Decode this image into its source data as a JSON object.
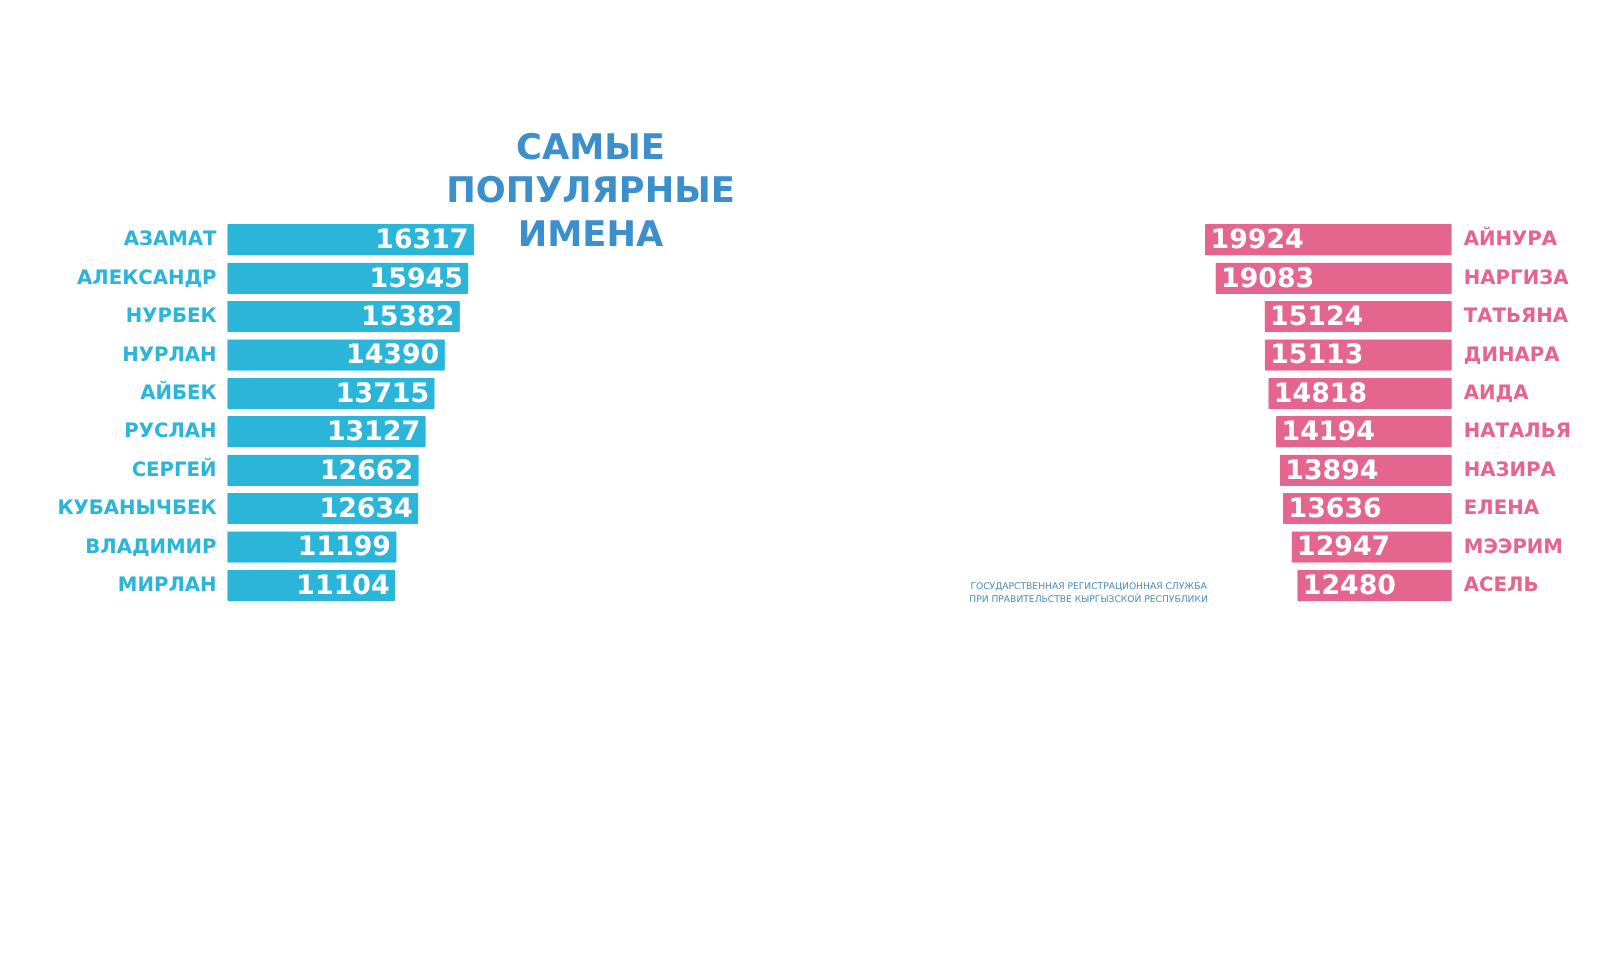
{
  "chart_data": [
    {
      "type": "bar",
      "orientation": "horizontal",
      "title": "САМЫЕ ПОПУЛЯРНЫЕ ИМЕНА",
      "categories": [
        "АЗАМАТ",
        "АЛЕКСАНДР",
        "НУРБЕК",
        "НУРЛАН",
        "АЙБЕК",
        "РУСЛАН",
        "СЕРГЕЙ",
        "КУБАНЫЧБЕК",
        "ВЛАДИМИР",
        "МИРЛАН"
      ],
      "values": [
        16317,
        15945,
        15382,
        14390,
        13715,
        13127,
        12662,
        12634,
        11199,
        11104
      ],
      "color": "#2bb5d9",
      "data_labels": true,
      "tick_labels": "y",
      "grid": false,
      "legend": false
    },
    {
      "type": "bar",
      "orientation": "horizontal",
      "categories": [
        "АЙНУРА",
        "НАРГИЗА",
        "ТАТЬЯНА",
        "ДИНАРА",
        "АИДА",
        "НАТАЛЬЯ",
        "НАЗИРА",
        "ЕЛЕНА",
        "МЭЭРИМ",
        "АСЕЛЬ"
      ],
      "values": [
        19924,
        19083,
        15124,
        15113,
        14818,
        14194,
        13894,
        13636,
        12947,
        12480
      ],
      "color": "#e4658d",
      "data_labels": true,
      "tick_labels": "y",
      "grid": false,
      "legend": false,
      "annotations": [
        "ГОСУДАРСТВЕННАЯ РЕГИСТРАЦИОННАЯ СЛУЖБА",
        "ПРИ ПРАВИТЕЛЬСТВЕ КЫРГЫЗСКОЙ РЕСПУБЛИКИ"
      ]
    }
  ]
}
